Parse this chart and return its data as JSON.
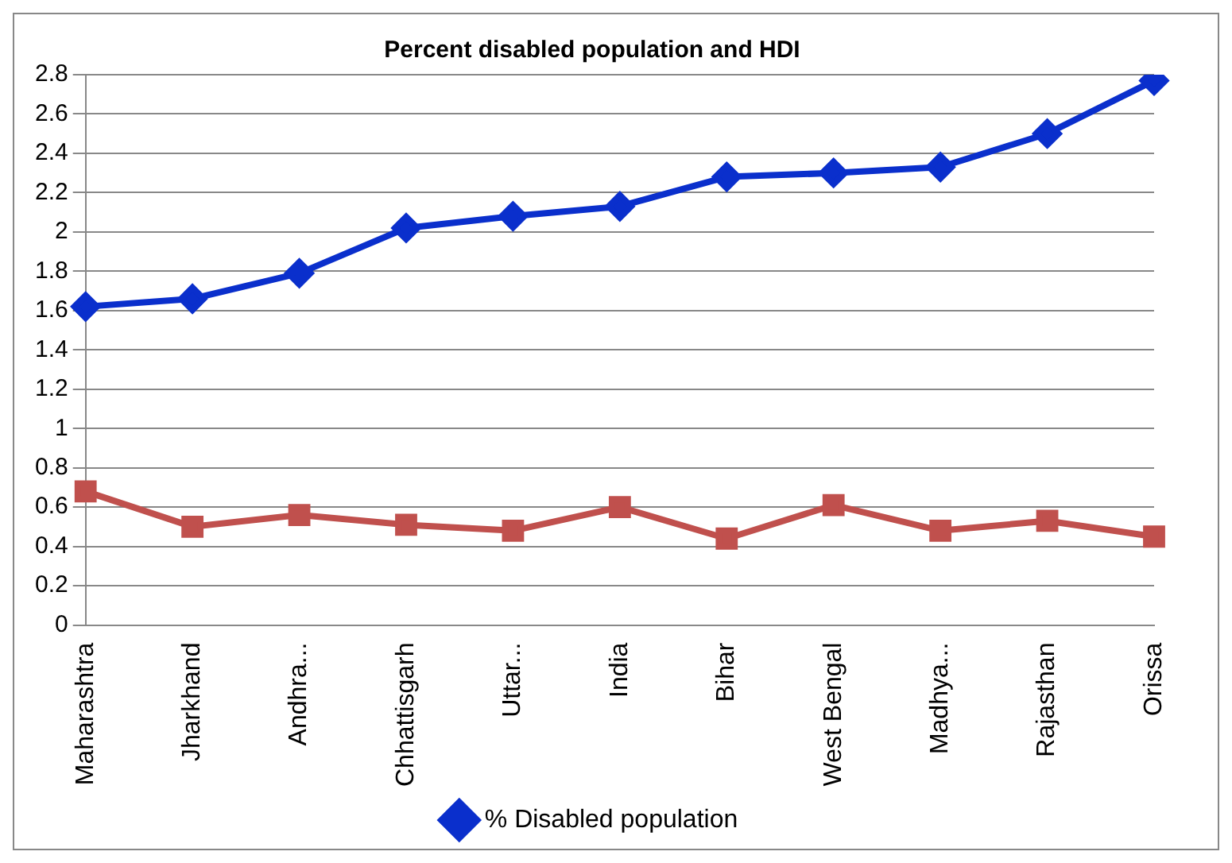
{
  "chart_data": {
    "type": "line",
    "title": "Percent disabled population and HDI",
    "categories": [
      "Maharashtra",
      "Jharkhand",
      "Andhra...",
      "Chhattisgarh",
      "Uttar...",
      "India",
      "Bihar",
      "West Bengal",
      "Madhya...",
      "Rajasthan",
      "Orissa"
    ],
    "series": [
      {
        "name": "% Disabled population",
        "color": "#0a2fcc",
        "marker": "diamond",
        "values": [
          1.62,
          1.66,
          1.79,
          2.02,
          2.08,
          2.13,
          2.28,
          2.3,
          2.33,
          2.5,
          2.77
        ]
      },
      {
        "color": "#c0504d",
        "marker": "square",
        "values": [
          0.68,
          0.5,
          0.56,
          0.51,
          0.48,
          0.6,
          0.44,
          0.61,
          0.48,
          0.53,
          0.45
        ]
      }
    ],
    "ylim": [
      0,
      2.8
    ],
    "yticks": [
      0,
      0.2,
      0.4,
      0.6,
      0.8,
      1,
      1.2,
      1.4,
      1.6,
      1.8,
      2,
      2.2,
      2.4,
      2.6,
      2.8
    ],
    "grid": "y",
    "legend": "bottom",
    "line_style": "solid"
  }
}
